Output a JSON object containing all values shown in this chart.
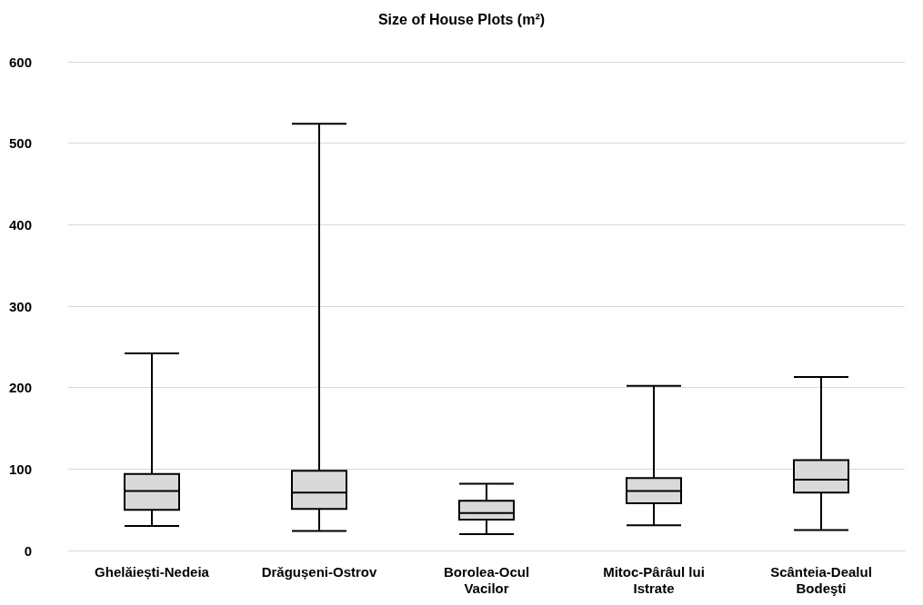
{
  "chart_data": {
    "type": "box",
    "title": "Size of House Plots (m²)",
    "categories": [
      "Ghelăiești-Nedeia",
      "Drăgușeni-Ostrov",
      "Borolea-Ocul Vacilor",
      "Mitoc-Pârâul lui Istrate",
      "Scânteia-Dealul Bodeşti"
    ],
    "series": [
      {
        "color": "#d9d9d9",
        "boxes": [
          {
            "low": 30,
            "q1": 50,
            "median": 73,
            "q3": 94,
            "high": 242
          },
          {
            "low": 24,
            "q1": 51,
            "median": 71,
            "q3": 98,
            "high": 524
          },
          {
            "low": 20,
            "q1": 38,
            "median": 46,
            "q3": 61,
            "high": 82
          },
          {
            "low": 31,
            "q1": 58,
            "median": 73,
            "q3": 89,
            "high": 202
          },
          {
            "low": 25,
            "q1": 71,
            "median": 87,
            "q3": 111,
            "high": 213
          }
        ]
      }
    ],
    "ylim": [
      0,
      600
    ],
    "yticks": [
      0,
      100,
      200,
      300,
      400,
      500,
      600
    ],
    "grid": "y"
  }
}
